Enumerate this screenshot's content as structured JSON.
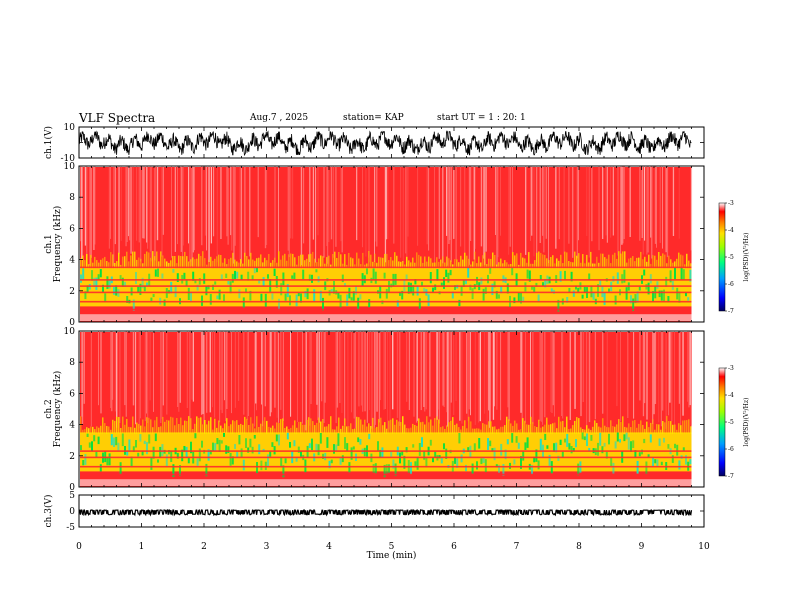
{
  "header": {
    "title": "VLF Spectra",
    "date": "Aug.7 , 2025",
    "station": "station= KAP",
    "start": "start UT = 1 : 20: 1"
  },
  "colors": {
    "red": "#ff2a2a",
    "pink": "#ffb8b8",
    "yellow": "#ffe000",
    "green": "#00e040",
    "cyan": "#20e0c0",
    "trace": "#000000"
  },
  "chart_data": [
    {
      "id": "ch1_waveform",
      "type": "line",
      "ylabel": "ch.1(V)",
      "ylim": [
        -10,
        10
      ],
      "yticks": [
        "10",
        "-10"
      ],
      "amplitude_range": [
        -8,
        7
      ]
    },
    {
      "id": "ch1_spectrogram",
      "type": "heatmap",
      "ylabel": "ch.1\nFrequency (kHz)",
      "ylim": [
        0,
        10
      ],
      "yticks": [
        "10",
        "8",
        "6",
        "4",
        "2",
        "0"
      ],
      "colorbar": {
        "label": "log(PSD)(V²/Hz)",
        "ticks": [
          "-3",
          "-4",
          "-5",
          "-6",
          "-7"
        ],
        "range": [
          -7,
          -3
        ]
      },
      "bands_khz": {
        "low_power_band": [
          1.0,
          3.5
        ],
        "lines": [
          0.4,
          0.8,
          1.3,
          1.9,
          2.3,
          2.7,
          3.5
        ]
      }
    },
    {
      "id": "ch2_spectrogram",
      "type": "heatmap",
      "ylabel": "ch.2\nFrequency (kHz)",
      "ylim": [
        0,
        10
      ],
      "yticks": [
        "10",
        "8",
        "6",
        "4",
        "2",
        "0"
      ],
      "colorbar": {
        "label": "log(PSD)(V²/Hz)",
        "ticks": [
          "-3",
          "-4",
          "-5",
          "-6",
          "-7"
        ],
        "range": [
          -7,
          -3
        ]
      },
      "bands_khz": {
        "low_power_band": [
          1.0,
          3.5
        ],
        "lines": [
          0.4,
          0.8,
          1.3,
          1.9,
          2.3
        ]
      }
    },
    {
      "id": "ch3_waveform",
      "type": "line",
      "ylabel": "ch.3(V)",
      "ylim": [
        -5,
        5
      ],
      "yticks": [
        "5",
        "0",
        "-5"
      ],
      "amplitude_range": [
        -1.2,
        0.3
      ]
    }
  ],
  "xaxis": {
    "label": "Time (min)",
    "range": [
      0,
      10
    ],
    "data_end": 9.8,
    "ticks": [
      "0",
      "1",
      "2",
      "3",
      "4",
      "5",
      "6",
      "7",
      "8",
      "9",
      "10"
    ]
  }
}
